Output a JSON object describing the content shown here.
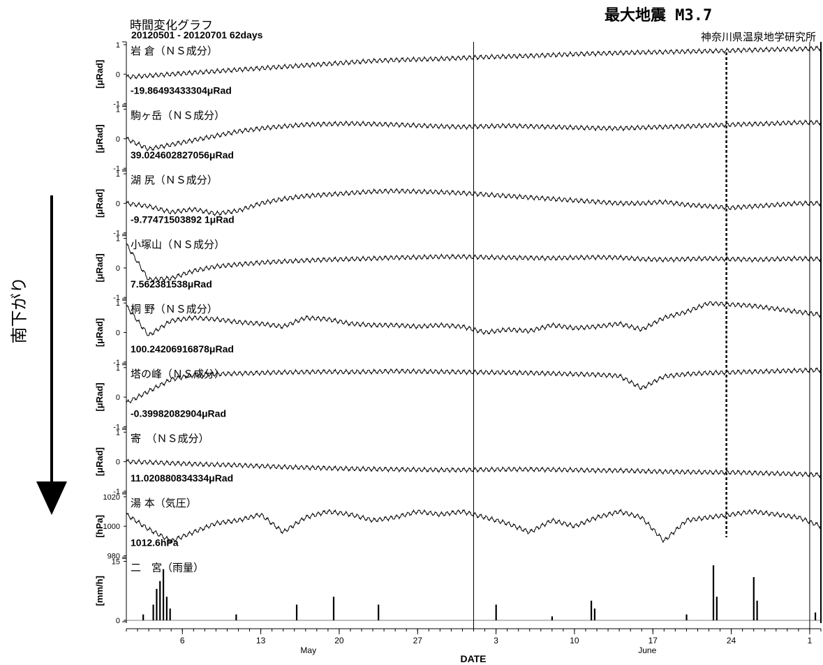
{
  "header": {
    "title": "時間変化グラフ",
    "subtitle": "20120501 - 20120701 62days",
    "earthquake": "最大地震 M3.7",
    "institute": "神奈川県温泉地学研究所"
  },
  "side_label": "南下がり",
  "chart_data": {
    "type": "line",
    "xlabel": "DATE",
    "x_range": [
      "2012-05-01",
      "2012-07-02"
    ],
    "x_ticks": [
      "6",
      "13",
      "20",
      "27",
      "3",
      "10",
      "17",
      "24",
      "1"
    ],
    "month_labels": [
      "May",
      "June"
    ],
    "event_marker_date": "2012-06-24",
    "panels": [
      {
        "name": "岩 倉（ＮＳ成分）",
        "ylabel": "[μRad]",
        "ticks": [
          "1",
          "0",
          "-1"
        ],
        "value_label": "-19.86493433304μRad",
        "values": [
          -0.1,
          -0.05,
          0.0,
          0.05,
          0.1,
          0.15,
          0.2,
          0.25,
          0.3,
          0.35,
          0.4,
          0.45,
          0.48,
          0.5,
          0.52,
          0.55,
          0.58,
          0.6,
          0.62,
          0.65,
          0.68,
          0.7,
          0.72,
          0.74,
          0.75,
          0.77,
          0.78,
          0.8,
          0.82,
          0.84,
          0.85,
          0.88
        ]
      },
      {
        "name": "駒ヶ岳（ＮＳ成分）",
        "ylabel": "[μRad]",
        "ticks": [
          "1",
          "0",
          "-1"
        ],
        "value_label": "39.024602827056μRad",
        "values": [
          0.0,
          -0.35,
          -0.2,
          -0.05,
          0.1,
          0.25,
          0.35,
          0.42,
          0.48,
          0.5,
          0.52,
          0.5,
          0.48,
          0.45,
          0.42,
          0.4,
          0.42,
          0.44,
          0.42,
          0.4,
          0.38,
          0.36,
          0.35,
          0.38,
          0.4,
          0.42,
          0.45,
          0.48,
          0.5,
          0.52,
          0.55,
          0.55
        ]
      },
      {
        "name": "湖 尻（ＮＳ成分）",
        "ylabel": "[μRad]",
        "ticks": [
          "1",
          "0",
          "-1"
        ],
        "value_label": "-9.77471503892 1μRad",
        "values": [
          0.0,
          -0.1,
          -0.3,
          -0.2,
          -0.35,
          -0.25,
          0.0,
          0.15,
          0.25,
          0.3,
          0.35,
          0.4,
          0.42,
          0.4,
          0.38,
          0.35,
          0.3,
          0.25,
          0.2,
          0.15,
          0.1,
          0.05,
          0.0,
          0.0,
          0.05,
          -0.05,
          -0.1,
          -0.15,
          -0.1,
          -0.05,
          0.0,
          0.0
        ]
      },
      {
        "name": "小塚山（ＮＳ成分）",
        "ylabel": "[μRad]",
        "ticks": [
          "1",
          "0",
          "-1"
        ],
        "value_label": "7.562381538μRad",
        "values": [
          0.8,
          -0.4,
          -0.35,
          -0.1,
          0.05,
          0.12,
          0.18,
          0.22,
          0.25,
          0.28,
          0.3,
          0.32,
          0.35,
          0.36,
          0.38,
          0.38,
          0.36,
          0.35,
          0.34,
          0.33,
          0.35,
          0.36,
          0.35,
          0.3,
          0.28,
          0.3,
          0.32,
          0.3,
          0.28,
          0.3,
          0.32,
          0.3
        ]
      },
      {
        "name": "桐 野（ＮＳ成分）",
        "ylabel": "[μRad]",
        "ticks": [
          "1",
          "0",
          "-1"
        ],
        "value_label": "100.24206916878μRad",
        "values": [
          0.9,
          -0.1,
          0.4,
          0.5,
          0.45,
          0.35,
          0.3,
          0.2,
          0.5,
          0.45,
          0.3,
          0.25,
          0.25,
          0.2,
          0.25,
          0.2,
          0.0,
          0.1,
          0.05,
          0.25,
          0.15,
          0.2,
          0.3,
          0.1,
          0.5,
          0.7,
          1.0,
          0.95,
          0.9,
          0.8,
          0.7,
          0.6
        ]
      },
      {
        "name": "塔の峰（ＮＳ成分）",
        "ylabel": "[μRad]",
        "ticks": [
          "1",
          "0",
          "-1"
        ],
        "value_label": "-0.39982082904μRad",
        "values": [
          -0.2,
          0.2,
          0.6,
          0.75,
          0.78,
          0.8,
          0.82,
          0.84,
          0.85,
          0.86,
          0.85,
          0.86,
          0.88,
          0.87,
          0.86,
          0.85,
          0.84,
          0.83,
          0.82,
          0.8,
          0.78,
          0.76,
          0.72,
          0.3,
          0.7,
          0.78,
          0.82,
          0.84,
          0.86,
          0.88,
          0.9,
          0.92
        ]
      },
      {
        "name": "寄　（ＮＳ成分）",
        "ylabel": "[μRad]",
        "ticks": [
          "1",
          "0",
          "-1"
        ],
        "value_label": "11.020880834334μRad",
        "values": [
          0.0,
          -0.02,
          -0.05,
          -0.08,
          -0.1,
          -0.12,
          -0.15,
          -0.18,
          -0.2,
          -0.22,
          -0.24,
          -0.25,
          -0.26,
          -0.27,
          -0.28,
          -0.28,
          -0.27,
          -0.26,
          -0.26,
          -0.27,
          -0.28,
          -0.3,
          -0.3,
          -0.32,
          -0.34,
          -0.35,
          -0.36,
          -0.36,
          -0.38,
          -0.4,
          -0.42,
          -0.45
        ]
      },
      {
        "name": "湯 本（気圧）",
        "ylabel": "[hPa]",
        "ticks": [
          "1020",
          "1000",
          "980"
        ],
        "value_label": "1012.6hPa",
        "values": [
          1008,
          998,
          990,
          996,
          1002,
          1004,
          1008,
          996,
          1006,
          1010,
          1008,
          1004,
          1006,
          1010,
          1008,
          1010,
          1006,
          1002,
          996,
          1004,
          1000,
          1006,
          1010,
          1006,
          990,
          1004,
          1006,
          1008,
          1010,
          1008,
          1006,
          1000
        ]
      },
      {
        "name": "二　宮（雨量）",
        "ylabel": "[mm/h]",
        "ticks": [
          "15",
          "0"
        ],
        "value_label": "",
        "rain": [
          {
            "day": 1.5,
            "v": 1.5
          },
          {
            "day": 2.4,
            "v": 4
          },
          {
            "day": 2.7,
            "v": 8
          },
          {
            "day": 3.0,
            "v": 10
          },
          {
            "day": 3.3,
            "v": 13
          },
          {
            "day": 3.6,
            "v": 6
          },
          {
            "day": 3.9,
            "v": 3
          },
          {
            "day": 9.8,
            "v": 1.5
          },
          {
            "day": 15.2,
            "v": 4
          },
          {
            "day": 18.5,
            "v": 6
          },
          {
            "day": 22.5,
            "v": 4
          },
          {
            "day": 33.0,
            "v": 4
          },
          {
            "day": 38.0,
            "v": 1
          },
          {
            "day": 41.5,
            "v": 5
          },
          {
            "day": 41.8,
            "v": 3
          },
          {
            "day": 50.0,
            "v": 1.5
          },
          {
            "day": 52.4,
            "v": 14
          },
          {
            "day": 52.7,
            "v": 6
          },
          {
            "day": 56.0,
            "v": 11
          },
          {
            "day": 56.3,
            "v": 5
          },
          {
            "day": 61.5,
            "v": 2
          }
        ]
      }
    ]
  }
}
